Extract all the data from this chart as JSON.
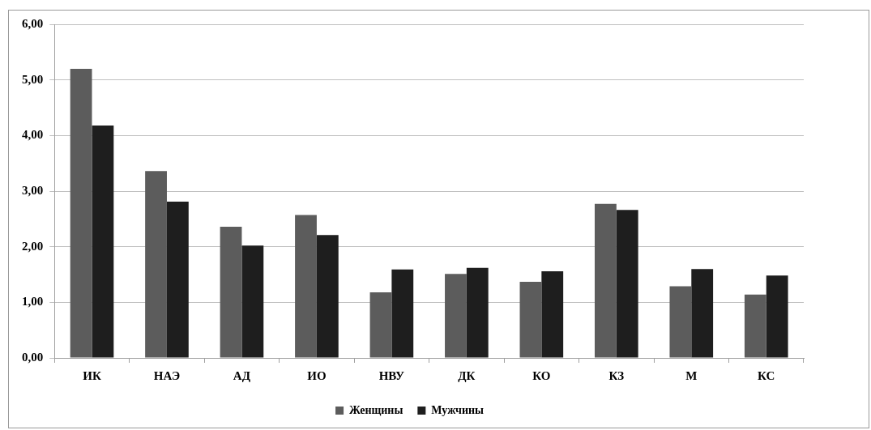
{
  "chart_data": {
    "type": "bar",
    "categories": [
      "ИК",
      "НАЭ",
      "АД",
      "ИО",
      "НВУ",
      "ДК",
      "КО",
      "КЗ",
      "М",
      "КС"
    ],
    "series": [
      {
        "name": "Женщины",
        "color": "#5c5c5c",
        "values": [
          5.2,
          3.36,
          2.36,
          2.57,
          1.18,
          1.51,
          1.37,
          2.77,
          1.29,
          1.14
        ]
      },
      {
        "name": "Мужчины",
        "color": "#1e1e1e",
        "values": [
          4.18,
          2.81,
          2.02,
          2.21,
          1.59,
          1.62,
          1.56,
          2.66,
          1.6,
          1.48
        ]
      }
    ],
    "ylim": [
      0,
      6
    ],
    "yticks": [
      {
        "value": 0,
        "label": "0,00"
      },
      {
        "value": 1,
        "label": "1,00"
      },
      {
        "value": 2,
        "label": "2,00"
      },
      {
        "value": 3,
        "label": "3,00"
      },
      {
        "value": 4,
        "label": "4,00"
      },
      {
        "value": 5,
        "label": "5,00"
      },
      {
        "value": 6,
        "label": "6,00"
      }
    ],
    "grid": "y",
    "legend": "bottom"
  }
}
